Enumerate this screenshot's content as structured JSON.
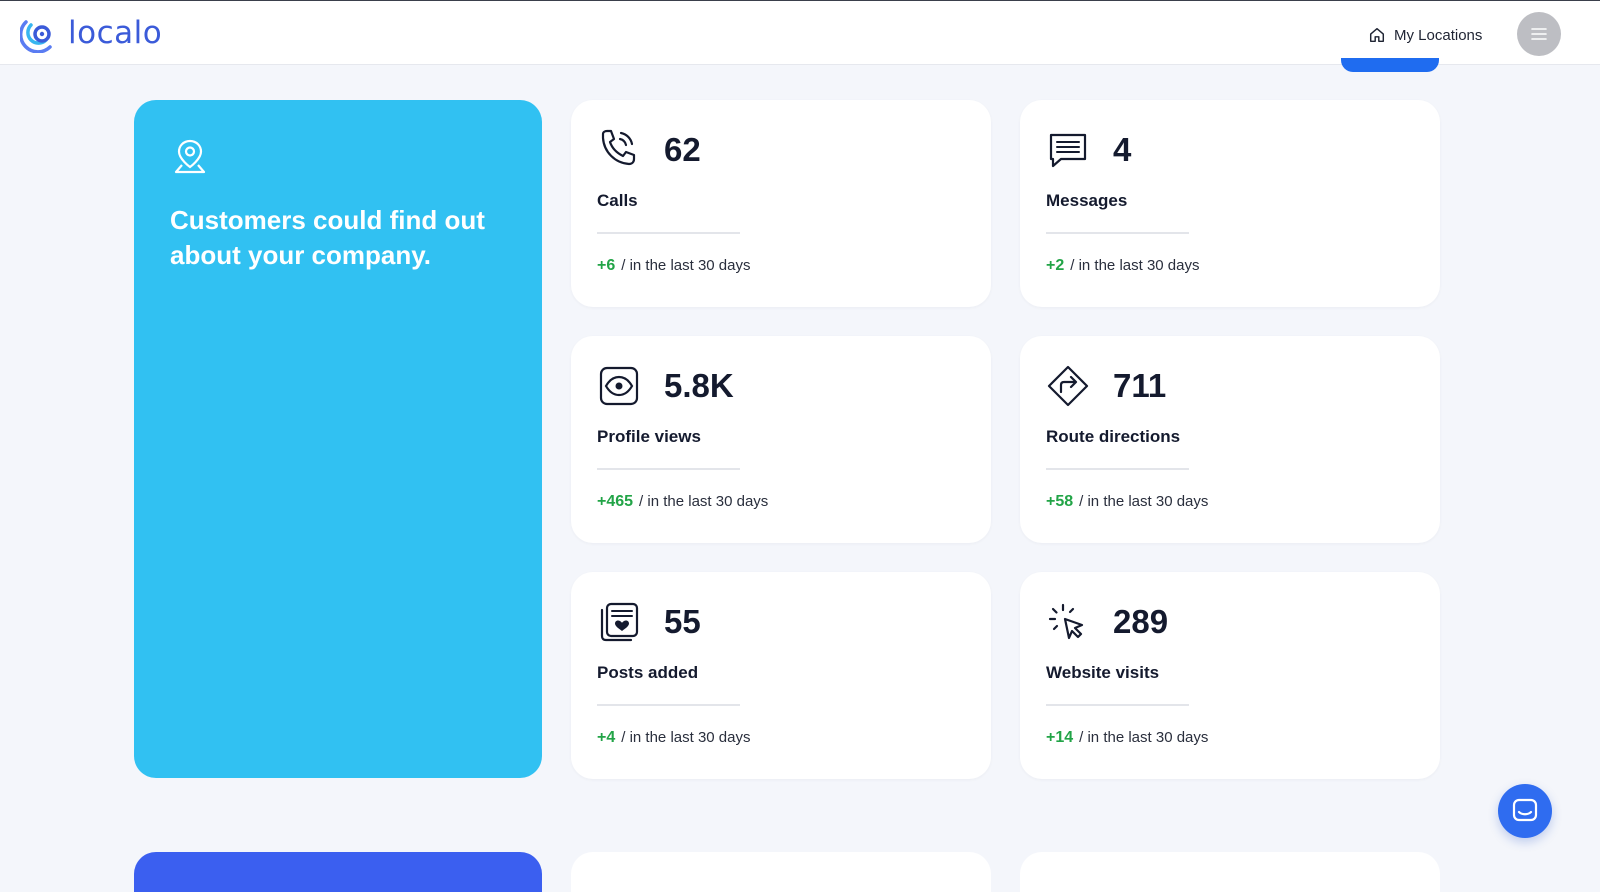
{
  "header": {
    "logo_text": "localo",
    "nav_locations_label": "My Locations",
    "menu_icon": "hamburger-icon"
  },
  "hero": {
    "icon": "location-pin-icon",
    "text": "Customers could find out about your company."
  },
  "stats": [
    {
      "icon": "phone-icon",
      "value": "62",
      "label": "Calls",
      "delta": "+6",
      "period": "/ in the last 30 days"
    },
    {
      "icon": "message-icon",
      "value": "4",
      "label": "Messages",
      "delta": "+2",
      "period": "/ in the last 30 days"
    },
    {
      "icon": "eye-icon",
      "value": "5.8K",
      "label": "Profile views",
      "delta": "+465",
      "period": "/ in the last 30 days"
    },
    {
      "icon": "route-direction-icon",
      "value": "711",
      "label": "Route directions",
      "delta": "+58",
      "period": "/ in the last 30 days"
    },
    {
      "icon": "posts-icon",
      "value": "55",
      "label": "Posts added",
      "delta": "+4",
      "period": "/ in the last 30 days"
    },
    {
      "icon": "click-cursor-icon",
      "value": "289",
      "label": "Website visits",
      "delta": "+14",
      "period": "/ in the last 30 days"
    }
  ],
  "colors": {
    "hero_bg": "#31c1f2",
    "brand": "#3b5bd9",
    "delta_positive": "#22a447",
    "chat_button": "#2f6cf0"
  },
  "chat": {
    "icon": "chat-icon"
  }
}
